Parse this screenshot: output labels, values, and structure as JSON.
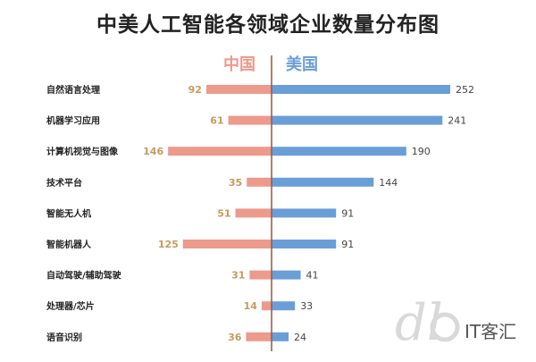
{
  "title": "中美人工智能各领域企业数量分布图",
  "colors": {
    "china": "#EC9A8C",
    "usa": "#6A9ED6",
    "china_text": "#C69A5C",
    "usa_text": "#444444",
    "axis": "#8B5A4A"
  },
  "chart_data": {
    "type": "bar",
    "orientation": "horizontal-butterfly",
    "categories": [
      "自然语言处理",
      "机器学习应用",
      "计算机视觉与图像",
      "技术平台",
      "智能无人机",
      "智能机器人",
      "自动驾驶/辅助驾驶",
      "处理器/芯片",
      "语音识别"
    ],
    "series": [
      {
        "name": "中国",
        "values": [
          92,
          61,
          146,
          35,
          51,
          125,
          31,
          14,
          36
        ]
      },
      {
        "name": "美国",
        "values": [
          252,
          241,
          190,
          144,
          91,
          91,
          41,
          33,
          24
        ]
      }
    ],
    "title": "中美人工智能各领域企业数量分布图",
    "grid": false,
    "legend": "top-center"
  },
  "watermark": {
    "brand": "IT客汇"
  }
}
